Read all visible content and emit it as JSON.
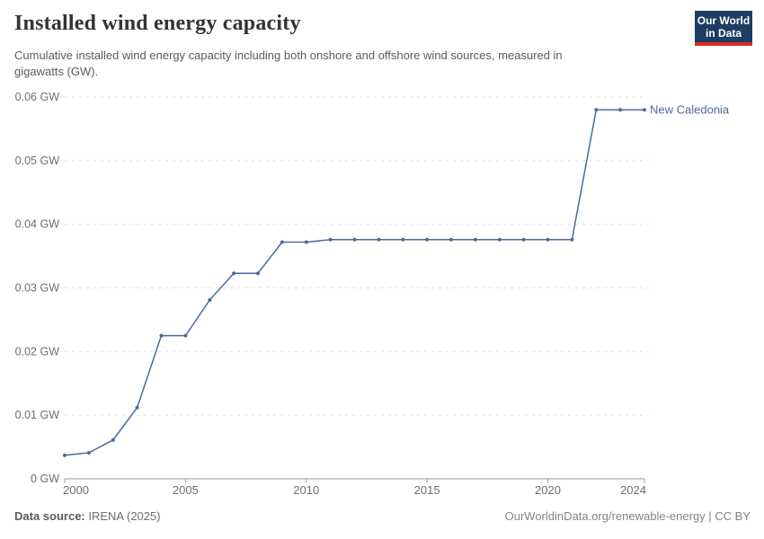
{
  "header": {
    "title": "Installed wind energy capacity",
    "subtitle_lines": [
      "Cumulative installed wind energy capacity including both onshore and offshore wind sources, measured in",
      "gigawatts (GW)."
    ],
    "logo": {
      "line1": "Our World",
      "line2": "in Data",
      "bg_color": "#1d3d63",
      "accent_color": "#dc2c1f"
    }
  },
  "chart_data": {
    "type": "line",
    "title": "Installed wind energy capacity",
    "xlabel": "",
    "ylabel": "",
    "unit": "GW",
    "xlim": [
      2000,
      2024
    ],
    "ylim": [
      0,
      0.06
    ],
    "grid": "horizontal-dashed",
    "gridline_color": "#e2e2e2",
    "axis_color": "#999999",
    "tick_label_color": "#6e6e6e",
    "legend_position": "end-of-line-label",
    "x_ticks": [
      2000,
      2005,
      2010,
      2015,
      2020,
      2024
    ],
    "y_ticks": [
      {
        "value": 0,
        "label": "0 GW"
      },
      {
        "value": 0.01,
        "label": "0.01 GW"
      },
      {
        "value": 0.02,
        "label": "0.02 GW"
      },
      {
        "value": 0.03,
        "label": "0.03 GW"
      },
      {
        "value": 0.04,
        "label": "0.04 GW"
      },
      {
        "value": 0.05,
        "label": "0.05 GW"
      },
      {
        "value": 0.06,
        "label": "0.06 GW"
      }
    ],
    "series": [
      {
        "name": "New Caledonia",
        "color": "#4c6a9c",
        "x": [
          2000,
          2001,
          2002,
          2003,
          2004,
          2005,
          2006,
          2007,
          2008,
          2009,
          2010,
          2011,
          2012,
          2013,
          2014,
          2015,
          2016,
          2017,
          2018,
          2019,
          2020,
          2021,
          2022,
          2023,
          2024
        ],
        "values": [
          0.0037,
          0.0041,
          0.0061,
          0.0112,
          0.0225,
          0.0225,
          0.0281,
          0.0323,
          0.0323,
          0.0372,
          0.0372,
          0.0376,
          0.0376,
          0.0376,
          0.0376,
          0.0376,
          0.0376,
          0.0376,
          0.0376,
          0.0376,
          0.0376,
          0.0376,
          0.058,
          0.058,
          0.058
        ]
      }
    ]
  },
  "footer": {
    "source_label": "Data source:",
    "source_value": "IRENA (2025)",
    "link": "OurWorldinData.org/renewable-energy",
    "separator": " | ",
    "license": "CC BY"
  }
}
